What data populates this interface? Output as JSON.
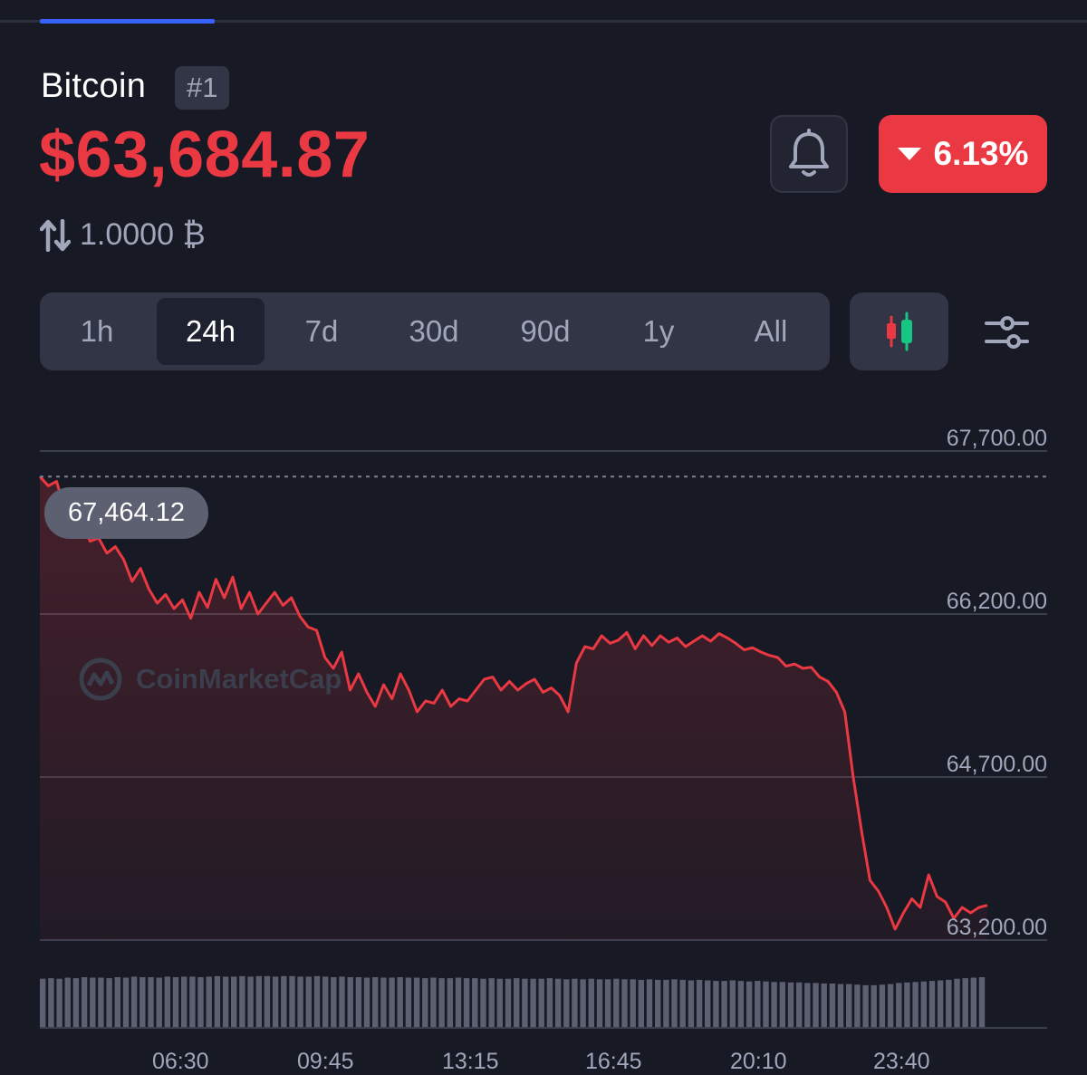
{
  "header": {
    "coin_name": "Bitcoin",
    "rank": "#1",
    "price": "$63,684.87",
    "change_percent": "6.13%",
    "change_direction": "down",
    "conversion": "1.0000 ₿"
  },
  "colors": {
    "background": "#171924",
    "negative": "#ea3943",
    "positive": "#16c784",
    "panel": "#323546",
    "muted_text": "#a1a7bb"
  },
  "icons": {
    "bell": "bell-icon",
    "swap": "swap-arrows-icon",
    "candles": "candlestick-icon",
    "filter": "sliders-icon"
  },
  "timeframes": {
    "items": [
      "1h",
      "24h",
      "7d",
      "30d",
      "90d",
      "1y",
      "All"
    ],
    "selected": "24h"
  },
  "chart_data": {
    "type": "area",
    "y_ticks": [
      "67,700.00",
      "66,200.00",
      "64,700.00",
      "63,200.00"
    ],
    "ylim": [
      63200,
      67700
    ],
    "x_ticks": [
      "06:30",
      "09:45",
      "13:15",
      "16:45",
      "20:10",
      "23:40"
    ],
    "reference_line": 67464.12,
    "reference_label": "67,464.12",
    "watermark": "CoinMarketCap",
    "grid": true,
    "series": [
      {
        "values": [
          67464,
          67380,
          67420,
          67150,
          66980,
          67050,
          66870,
          66900,
          66760,
          66820,
          66700,
          66500,
          66620,
          66430,
          66300,
          66380,
          66250,
          66330,
          66160,
          66400,
          66260,
          66520,
          66350,
          66540,
          66250,
          66400,
          66200,
          66300,
          66400,
          66280,
          66350,
          66180,
          66080,
          66050,
          65800,
          65700,
          65850,
          65500,
          65650,
          65480,
          65350,
          65550,
          65420,
          65650,
          65500,
          65300,
          65400,
          65380,
          65500,
          65350,
          65420,
          65400,
          65500,
          65600,
          65620,
          65500,
          65580,
          65500,
          65560,
          65600,
          65480,
          65520,
          65450,
          65300,
          65750,
          65900,
          65880,
          66000,
          65930,
          65960,
          66030,
          65880,
          66000,
          65910,
          66000,
          65940,
          65980,
          65900,
          65950,
          66000,
          65950,
          66020,
          65980,
          65930,
          65870,
          65890,
          65850,
          65820,
          65800,
          65720,
          65740,
          65700,
          65710,
          65620,
          65580,
          65480,
          65300,
          64700,
          64200,
          63750,
          63650,
          63500,
          63300,
          63450,
          63580,
          63500,
          63800,
          63600,
          63550,
          63400,
          63500,
          63450,
          63500,
          63520
        ]
      }
    ]
  },
  "volume_data": {
    "values": [
      0.92,
      0.93,
      0.92,
      0.94,
      0.93,
      0.95,
      0.94,
      0.94,
      0.93,
      0.95,
      0.94,
      0.96,
      0.95,
      0.95,
      0.94,
      0.96,
      0.95,
      0.96,
      0.96,
      0.95,
      0.96,
      0.97,
      0.96,
      0.96,
      0.97,
      0.96,
      0.97,
      0.97,
      0.96,
      0.97,
      0.97,
      0.96,
      0.96,
      0.97,
      0.96,
      0.95,
      0.96,
      0.95,
      0.95,
      0.94,
      0.95,
      0.94,
      0.94,
      0.95,
      0.94,
      0.94,
      0.93,
      0.94,
      0.93,
      0.93,
      0.94,
      0.93,
      0.93,
      0.92,
      0.93,
      0.92,
      0.92,
      0.93,
      0.92,
      0.92,
      0.92,
      0.93,
      0.92,
      0.91,
      0.92,
      0.91,
      0.92,
      0.91,
      0.91,
      0.92,
      0.91,
      0.91,
      0.9,
      0.91,
      0.9,
      0.9,
      0.91,
      0.9,
      0.89,
      0.9,
      0.89,
      0.88,
      0.88,
      0.89,
      0.88,
      0.87,
      0.88,
      0.87,
      0.86,
      0.86,
      0.85,
      0.85,
      0.84,
      0.84,
      0.83,
      0.83,
      0.82,
      0.82,
      0.81,
      0.8,
      0.8,
      0.81,
      0.82,
      0.84,
      0.85,
      0.86,
      0.87,
      0.88,
      0.89,
      0.9,
      0.92,
      0.93,
      0.94,
      0.95
    ]
  }
}
